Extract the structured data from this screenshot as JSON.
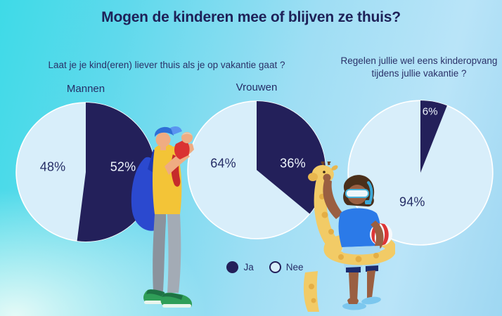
{
  "page": {
    "title": "Mogen de kinderen mee of blijven ze thuis?"
  },
  "questions": {
    "left": "Laat je je kind(eren) liever thuis als je op vakantie gaat ?",
    "right": "Regelen jullie wel eens kinderopvang tijdens jullie vakantie ?"
  },
  "legend": {
    "ja": "Ja",
    "nee": "Nee"
  },
  "colors": {
    "title_text": "#1e2158",
    "body_text": "#2a3168",
    "ja_slice": "#23205a",
    "nee_slice": "#d8eefa",
    "pie_outline": "#ffffff",
    "pct_on_dark": "#eef5fc",
    "bg_top_left": "#3edae7",
    "bg_right": "#b9e4f8",
    "bg_bottom_left": "#ecfcf8"
  },
  "chart_data": [
    {
      "type": "pie",
      "title": "Mannen",
      "question": "Laat je je kind(eren) liever thuis als je op vakantie gaat ?",
      "slices": [
        {
          "label": "Ja",
          "value": 52,
          "display": "52%"
        },
        {
          "label": "Nee",
          "value": 48,
          "display": "48%"
        }
      ],
      "layout": "Ja slice starts at 12 o'clock and sweeps clockwise"
    },
    {
      "type": "pie",
      "title": "Vrouwen",
      "question": "Laat je je kind(eren) liever thuis als je op vakantie gaat ?",
      "slices": [
        {
          "label": "Ja",
          "value": 36,
          "display": "36%"
        },
        {
          "label": "Nee",
          "value": 64,
          "display": "64%"
        }
      ],
      "layout": "Ja slice starts at 12 o'clock and sweeps clockwise"
    },
    {
      "type": "pie",
      "title": "",
      "question": "Regelen jullie wel eens kinderopvang tijdens jullie vakantie ?",
      "slices": [
        {
          "label": "Ja",
          "value": 6,
          "display": "6%"
        },
        {
          "label": "Nee",
          "value": 94,
          "display": "94%"
        }
      ],
      "layout": "Ja slice starts at 12 o'clock and sweeps clockwise"
    }
  ],
  "illustrations": {
    "man_with_baby": "man in blue cap and yellow shirt with blue shoulder bag holding a baby in red",
    "child_with_float": "child with snorkel mask, blue shirt, yellow giraffe swim ring and red-white beach ball"
  }
}
